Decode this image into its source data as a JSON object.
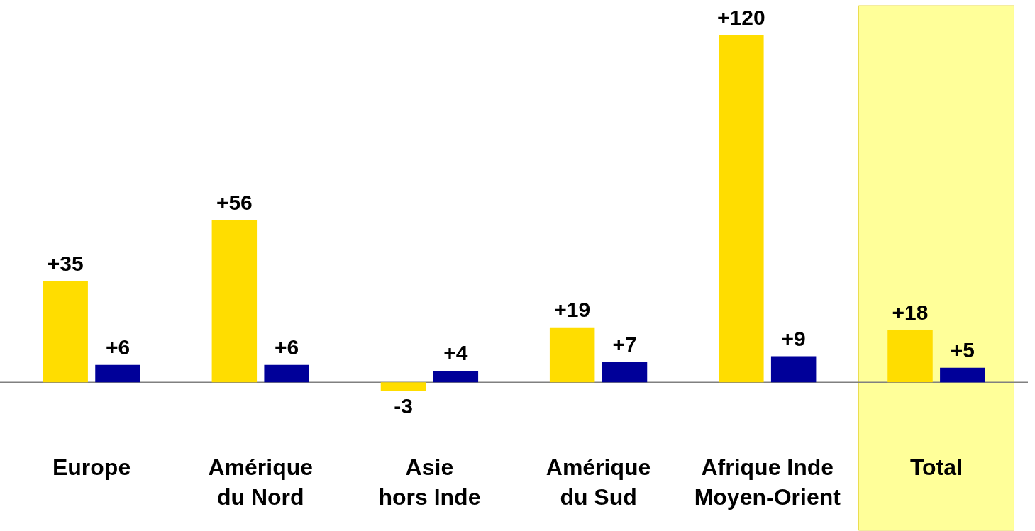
{
  "chart_data": {
    "type": "bar",
    "categories": [
      "Europe",
      "Amérique\ndu Nord",
      "Asie\nhors Inde",
      "Amérique\ndu Sud",
      "Afrique Inde\nMoyen-Orient",
      "Total"
    ],
    "series": [
      {
        "color": "#ffdd00",
        "values": [
          35,
          56,
          -3,
          19,
          120,
          18
        ],
        "value_labels": [
          "+35",
          "+56",
          "-3",
          "+19",
          "+120",
          "+18"
        ]
      },
      {
        "color": "#000099",
        "values": [
          6,
          6,
          4,
          7,
          9,
          5
        ],
        "value_labels": [
          "+6",
          "+6",
          "+4",
          "+7",
          "+9",
          "+5"
        ]
      }
    ],
    "tick_labels": "x",
    "grid": false,
    "legend": false,
    "bands": [
      {
        "axis": "x",
        "from": "Total",
        "to": "Total",
        "color": "#ffff99"
      }
    ]
  }
}
